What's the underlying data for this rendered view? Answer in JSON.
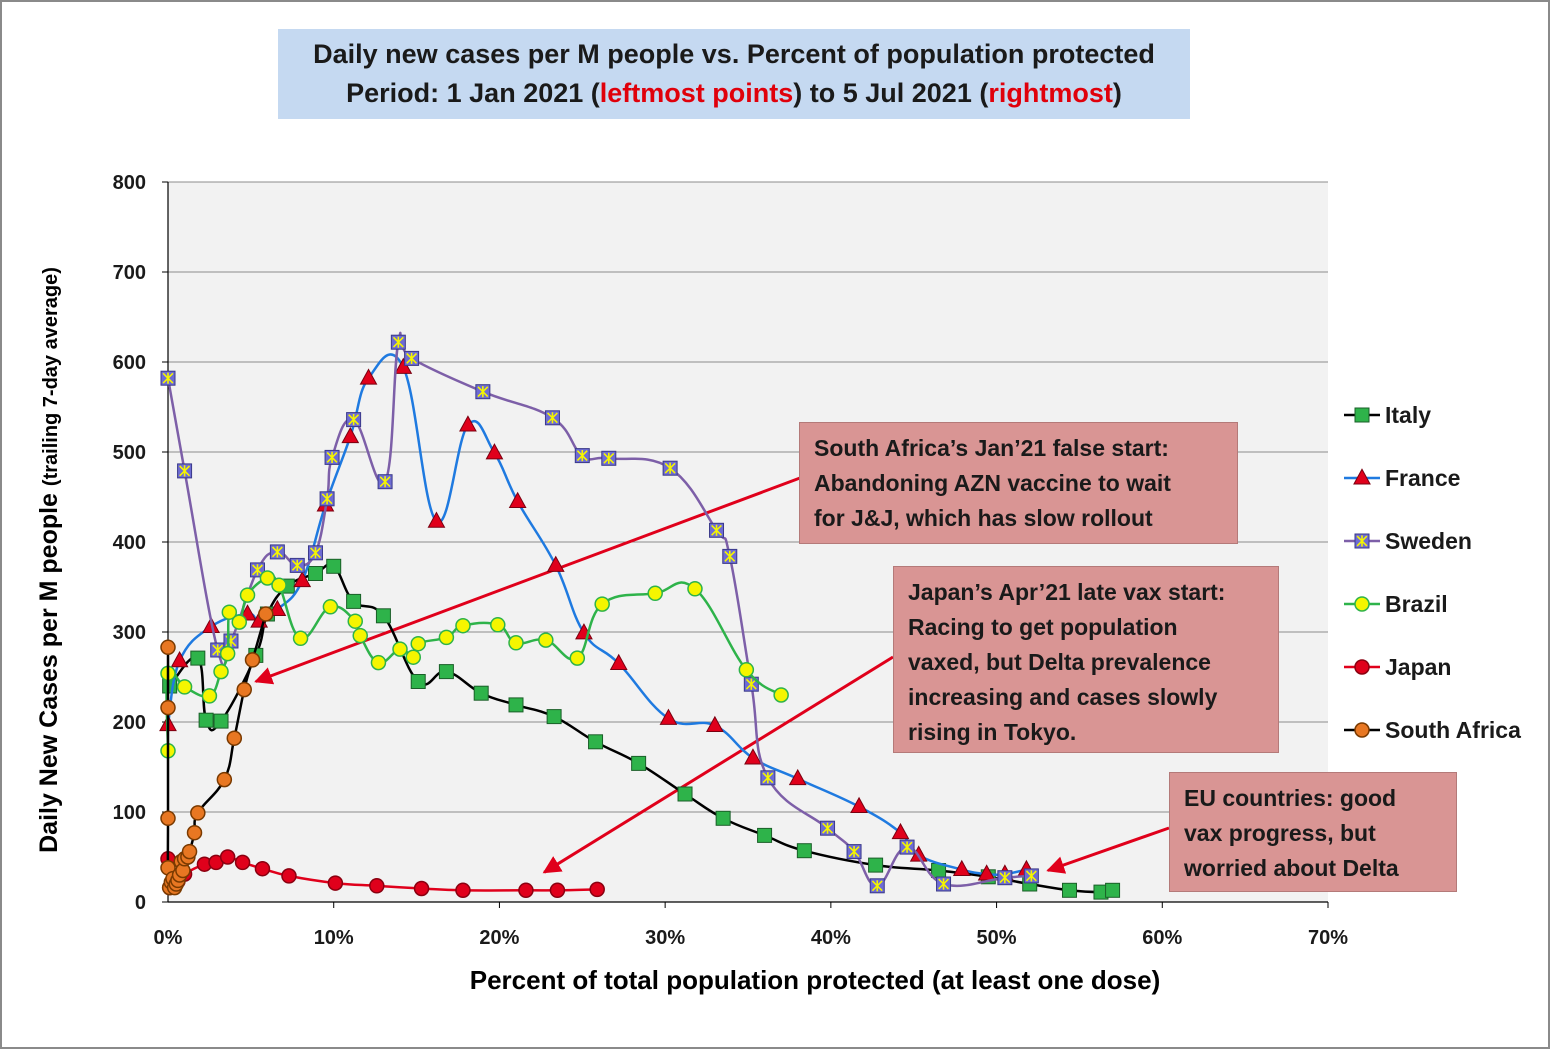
{
  "title": {
    "line1": "Daily new cases per M people vs. Percent of population protected",
    "line2_a": "Period:  1 Jan 2021 (",
    "line2_b": "leftmost points",
    "line2_c": ") to 5 Jul 2021 (",
    "line2_d": "rightmost",
    "line2_e": ")"
  },
  "annotations": {
    "south_africa": "South Africa’s Jan’21 false start:\nAbandoning AZN  vaccine to wait\nfor J&J, which has slow rollout",
    "japan": "Japan’s Apr’21 late vax start:\nRacing to get population\nvaxed, but Delta prevalence\nincreasing and cases slowly\nrising in Tokyo.",
    "eu": "EU countries: good\nvax progress, but\nworried about Delta"
  },
  "chart_data": {
    "type": "scatter",
    "xlabel": "Percent of total population protected (at least one dose)",
    "ylabel_main": "Daily New Cases per M people",
    "ylabel_sub": "(trailing 7-day average)",
    "xlim": [
      0,
      70
    ],
    "ylim": [
      0,
      800
    ],
    "xticks": [
      0,
      10,
      20,
      30,
      40,
      50,
      60,
      70
    ],
    "xtick_labels": [
      "0%",
      "10%",
      "20%",
      "30%",
      "40%",
      "50%",
      "60%",
      "70%"
    ],
    "yticks": [
      0,
      100,
      200,
      300,
      400,
      500,
      600,
      700,
      800
    ],
    "ytick_labels": [
      "0",
      "100",
      "200",
      "300",
      "400",
      "500",
      "600",
      "700",
      "800"
    ],
    "grid": true,
    "legend_position": "right",
    "series": [
      {
        "name": "Italy",
        "color": "#000000",
        "marker": "square",
        "marker_color": "#2eb34a",
        "points": [
          [
            0.1,
            240
          ],
          [
            1.8,
            271
          ],
          [
            2.3,
            202
          ],
          [
            3.2,
            201
          ],
          [
            5.3,
            274
          ],
          [
            6.0,
            320
          ],
          [
            7.2,
            351
          ],
          [
            8.9,
            365
          ],
          [
            10.0,
            373
          ],
          [
            11.2,
            334
          ],
          [
            13.0,
            318
          ],
          [
            15.1,
            245
          ],
          [
            16.8,
            256
          ],
          [
            18.9,
            232
          ],
          [
            21.0,
            219
          ],
          [
            23.3,
            206
          ],
          [
            25.8,
            178
          ],
          [
            28.4,
            154
          ],
          [
            31.2,
            120
          ],
          [
            33.5,
            93
          ],
          [
            36.0,
            74
          ],
          [
            38.4,
            57
          ],
          [
            42.7,
            41
          ],
          [
            46.5,
            35
          ],
          [
            49.5,
            28
          ],
          [
            52.0,
            20
          ],
          [
            54.4,
            13
          ],
          [
            56.3,
            11
          ],
          [
            57.0,
            13
          ]
        ]
      },
      {
        "name": "France",
        "color": "#1f7ae0",
        "marker": "triangle",
        "marker_color": "#e0001b",
        "points": [
          [
            0.0,
            197
          ],
          [
            0.7,
            268
          ],
          [
            2.6,
            306
          ],
          [
            4.8,
            320
          ],
          [
            5.5,
            312
          ],
          [
            6.6,
            325
          ],
          [
            8.1,
            357
          ],
          [
            9.5,
            441
          ],
          [
            11.0,
            517
          ],
          [
            12.1,
            582
          ],
          [
            14.2,
            594
          ],
          [
            16.2,
            423
          ],
          [
            18.1,
            530
          ],
          [
            19.7,
            499
          ],
          [
            21.1,
            445
          ],
          [
            23.4,
            374
          ],
          [
            25.1,
            299
          ],
          [
            27.2,
            265
          ],
          [
            30.2,
            204
          ],
          [
            33.0,
            196
          ],
          [
            35.3,
            160
          ],
          [
            38.0,
            137
          ],
          [
            41.7,
            106
          ],
          [
            44.2,
            77
          ],
          [
            45.3,
            52
          ],
          [
            47.9,
            36
          ],
          [
            49.4,
            31
          ],
          [
            50.5,
            31
          ],
          [
            51.8,
            36
          ]
        ]
      },
      {
        "name": "Sweden",
        "color": "#7d5fa8",
        "marker": "square-star",
        "marker_color": "#6e6cd4",
        "points": [
          [
            0.0,
            582
          ],
          [
            1.0,
            479
          ],
          [
            3.0,
            280
          ],
          [
            3.8,
            290
          ],
          [
            5.4,
            369
          ],
          [
            6.6,
            389
          ],
          [
            7.8,
            374
          ],
          [
            8.9,
            388
          ],
          [
            9.6,
            448
          ],
          [
            9.9,
            494
          ],
          [
            11.2,
            536
          ],
          [
            13.1,
            467
          ],
          [
            13.9,
            622
          ],
          [
            14.7,
            604
          ],
          [
            19.0,
            567
          ],
          [
            23.2,
            538
          ],
          [
            25.0,
            496
          ],
          [
            26.6,
            493
          ],
          [
            30.3,
            482
          ],
          [
            33.1,
            413
          ],
          [
            33.9,
            384
          ],
          [
            35.2,
            242
          ],
          [
            36.2,
            138
          ],
          [
            39.8,
            82
          ],
          [
            41.4,
            56
          ],
          [
            42.8,
            18
          ],
          [
            44.6,
            61
          ],
          [
            46.8,
            20
          ],
          [
            50.5,
            27
          ],
          [
            52.1,
            29
          ]
        ]
      },
      {
        "name": "Brazil",
        "color": "#2eb34a",
        "marker": "circle",
        "marker_color": "#f5f500",
        "points": [
          [
            0.0,
            168
          ],
          [
            0.0,
            254
          ],
          [
            1.0,
            239
          ],
          [
            2.5,
            229
          ],
          [
            3.2,
            256
          ],
          [
            3.6,
            276
          ],
          [
            3.7,
            322
          ],
          [
            4.3,
            311
          ],
          [
            4.8,
            341
          ],
          [
            6.0,
            360
          ],
          [
            6.7,
            352
          ],
          [
            8.0,
            293
          ],
          [
            9.8,
            328
          ],
          [
            11.3,
            312
          ],
          [
            11.6,
            296
          ],
          [
            12.7,
            266
          ],
          [
            14.0,
            281
          ],
          [
            14.8,
            272
          ],
          [
            15.1,
            287
          ],
          [
            16.8,
            294
          ],
          [
            17.8,
            307
          ],
          [
            19.9,
            308
          ],
          [
            21.0,
            288
          ],
          [
            22.8,
            291
          ],
          [
            24.7,
            271
          ],
          [
            26.2,
            331
          ],
          [
            29.4,
            343
          ],
          [
            31.8,
            348
          ],
          [
            34.9,
            258
          ],
          [
            37.0,
            230
          ]
        ]
      },
      {
        "name": "Japan",
        "color": "#e0001b",
        "marker": "circle",
        "marker_color": "#e0001b",
        "points": [
          [
            0.0,
            48
          ],
          [
            0.1,
            16
          ],
          [
            0.6,
            23
          ],
          [
            1.0,
            31
          ],
          [
            2.2,
            42
          ],
          [
            2.9,
            44
          ],
          [
            3.6,
            50
          ],
          [
            4.5,
            44
          ],
          [
            5.7,
            37
          ],
          [
            7.3,
            29
          ],
          [
            10.1,
            21
          ],
          [
            12.6,
            18
          ],
          [
            15.3,
            15
          ],
          [
            17.8,
            13
          ],
          [
            21.6,
            13
          ],
          [
            23.5,
            13
          ],
          [
            25.9,
            14
          ]
        ]
      },
      {
        "name": "South Africa",
        "color": "#000000",
        "marker": "circle",
        "marker_color": "#e87722",
        "points": [
          [
            0.0,
            283
          ],
          [
            0.0,
            216
          ],
          [
            0.0,
            93
          ],
          [
            0.0,
            38
          ],
          [
            0.1,
            16
          ],
          [
            0.2,
            22
          ],
          [
            0.3,
            26
          ],
          [
            0.4,
            16
          ],
          [
            0.5,
            20
          ],
          [
            0.6,
            24
          ],
          [
            0.7,
            30
          ],
          [
            0.8,
            45
          ],
          [
            0.9,
            35
          ],
          [
            1.0,
            48
          ],
          [
            1.2,
            50
          ],
          [
            1.3,
            56
          ],
          [
            1.6,
            77
          ],
          [
            1.8,
            99
          ],
          [
            3.4,
            136
          ],
          [
            4.0,
            182
          ],
          [
            4.6,
            236
          ],
          [
            5.1,
            269
          ],
          [
            5.9,
            320
          ]
        ]
      }
    ]
  }
}
